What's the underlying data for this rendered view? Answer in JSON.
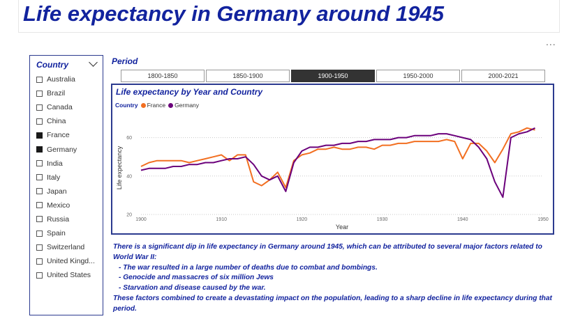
{
  "page": {
    "title": "Life expectancy in Germany around 1945",
    "more_icon": "..."
  },
  "slicer": {
    "header": "Country",
    "countries": [
      {
        "label": "Australia",
        "checked": false
      },
      {
        "label": "Brazil",
        "checked": false
      },
      {
        "label": "Canada",
        "checked": false
      },
      {
        "label": "China",
        "checked": false
      },
      {
        "label": "France",
        "checked": true
      },
      {
        "label": "Germany",
        "checked": true
      },
      {
        "label": "India",
        "checked": false
      },
      {
        "label": "Italy",
        "checked": false
      },
      {
        "label": "Japan",
        "checked": false
      },
      {
        "label": "Mexico",
        "checked": false
      },
      {
        "label": "Russia",
        "checked": false
      },
      {
        "label": "Spain",
        "checked": false
      },
      {
        "label": "Switzerland",
        "checked": false
      },
      {
        "label": "United Kingd...",
        "checked": false
      },
      {
        "label": "United States",
        "checked": false
      }
    ]
  },
  "period": {
    "label": "Period",
    "tabs": [
      "1800-1850",
      "1850-1900",
      "1900-1950",
      "1950-2000",
      "2000-2021"
    ],
    "active": "1900-1950"
  },
  "chart_data": {
    "type": "line",
    "title": "Life expectancy by Year and Country",
    "legend_title": "Country",
    "xlabel": "Year",
    "ylabel": "Life expectancy",
    "xlim": [
      1900,
      1950
    ],
    "ylim": [
      20,
      70
    ],
    "xticks": [
      1900,
      1910,
      1920,
      1930,
      1940,
      1950
    ],
    "yticks": [
      20,
      40,
      60
    ],
    "grid": true,
    "series": [
      {
        "name": "France",
        "color": "#f26f21",
        "x": [
          1900,
          1901,
          1902,
          1903,
          1904,
          1905,
          1906,
          1907,
          1908,
          1909,
          1910,
          1911,
          1912,
          1913,
          1914,
          1915,
          1916,
          1917,
          1918,
          1919,
          1920,
          1921,
          1922,
          1923,
          1924,
          1925,
          1926,
          1927,
          1928,
          1929,
          1930,
          1931,
          1932,
          1933,
          1934,
          1935,
          1936,
          1937,
          1938,
          1939,
          1940,
          1941,
          1942,
          1943,
          1944,
          1945,
          1946,
          1947,
          1948,
          1949
        ],
        "y": [
          45,
          47,
          48,
          48,
          48,
          48,
          47,
          48,
          49,
          50,
          51,
          48,
          51,
          51,
          37,
          35,
          38,
          42,
          34,
          48,
          51,
          52,
          54,
          54,
          55,
          54,
          54,
          55,
          55,
          54,
          56,
          56,
          57,
          57,
          58,
          58,
          58,
          58,
          59,
          58,
          49,
          57,
          57,
          53,
          47,
          54,
          62,
          63,
          65,
          64
        ]
      },
      {
        "name": "Germany",
        "color": "#6b007b",
        "x": [
          1900,
          1901,
          1902,
          1903,
          1904,
          1905,
          1906,
          1907,
          1908,
          1909,
          1910,
          1911,
          1912,
          1913,
          1914,
          1915,
          1916,
          1917,
          1918,
          1919,
          1920,
          1921,
          1922,
          1923,
          1924,
          1925,
          1926,
          1927,
          1928,
          1929,
          1930,
          1931,
          1932,
          1933,
          1934,
          1935,
          1936,
          1937,
          1938,
          1939,
          1940,
          1941,
          1942,
          1943,
          1944,
          1945,
          1946,
          1947,
          1948,
          1949
        ],
        "y": [
          43,
          44,
          44,
          44,
          45,
          45,
          46,
          46,
          47,
          47,
          48,
          49,
          49,
          50,
          46,
          40,
          38,
          40,
          32,
          47,
          53,
          55,
          55,
          56,
          56,
          57,
          57,
          58,
          58,
          59,
          59,
          59,
          60,
          60,
          61,
          61,
          61,
          62,
          62,
          61,
          60,
          59,
          55,
          49,
          37,
          29,
          60,
          62,
          63,
          65
        ]
      }
    ]
  },
  "note": {
    "intro": "There is a significant dip in life expectancy in Germany around 1945, which can be attributed to several major factors related to World War II:",
    "points": [
      "The war resulted in a large number of deaths due to combat and bombings.",
      "Genocide and massacres of six million Jews",
      "Starvation and disease caused by the war."
    ],
    "outro": "These factors combined to create a devastating impact on the population, leading to a sharp decline in life expectancy during that period."
  }
}
